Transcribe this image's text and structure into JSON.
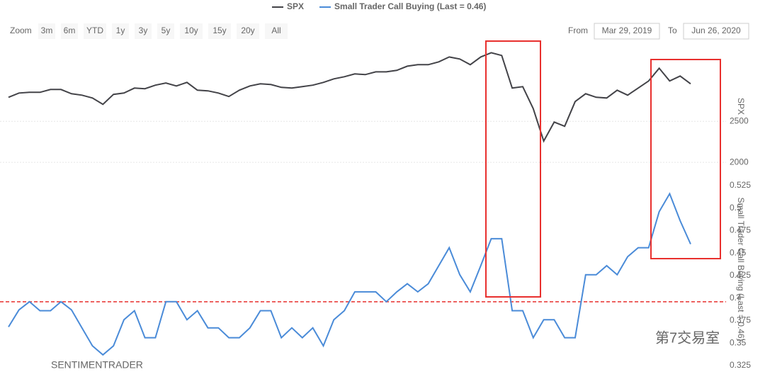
{
  "range_selector": {
    "label": "Zoom",
    "buttons": [
      "3m",
      "6m",
      "YTD",
      "1y",
      "3y",
      "5y",
      "10y",
      "15y",
      "20y",
      "All"
    ]
  },
  "date_range": {
    "from_label": "From",
    "from": "Mar 29, 2019",
    "to_label": "To",
    "to": "Jun 26, 2020"
  },
  "credit": "SENTIMENTRADER",
  "watermark": "第7交易室",
  "chart_data": [
    {
      "type": "line",
      "y_label": "SPX",
      "ylim": [
        1820,
        3460
      ],
      "yticks": [
        2000,
        2500
      ],
      "grid": true,
      "series": [
        {
          "name": "SPX",
          "color": "#434348",
          "values": [
            2793,
            2845,
            2853,
            2853,
            2888,
            2888,
            2836,
            2819,
            2784,
            2707,
            2828,
            2845,
            2905,
            2897,
            2940,
            2966,
            2931,
            2974,
            2879,
            2871,
            2845,
            2802,
            2879,
            2931,
            2957,
            2948,
            2914,
            2905,
            2922,
            2940,
            2974,
            3017,
            3043,
            3078,
            3069,
            3103,
            3103,
            3121,
            3172,
            3190,
            3190,
            3224,
            3284,
            3259,
            3190,
            3284,
            3336,
            3302,
            2905,
            2922,
            2655,
            2259,
            2491,
            2440,
            2741,
            2836,
            2793,
            2784,
            2879,
            2819,
            2905,
            2991,
            3147,
            2991,
            3052,
            2957
          ]
        }
      ]
    },
    {
      "type": "line",
      "y_label": "Small Trader Call Buying (Last = 0.46)",
      "ylim": [
        0.325,
        0.525
      ],
      "yticks": [
        0.325,
        0.35,
        0.375,
        0.4,
        0.425,
        0.45,
        0.475,
        0.5,
        0.525
      ],
      "grid": false,
      "reference_line": {
        "value": 0.396,
        "color": "#e8302e"
      },
      "series": [
        {
          "name": "Small Trader Call Buying (Last = 0.46)",
          "color": "#4a8bd8",
          "values": [
            0.368,
            0.387,
            0.396,
            0.386,
            0.386,
            0.396,
            0.387,
            0.367,
            0.347,
            0.337,
            0.347,
            0.376,
            0.386,
            0.356,
            0.356,
            0.396,
            0.396,
            0.376,
            0.386,
            0.367,
            0.367,
            0.356,
            0.356,
            0.367,
            0.386,
            0.386,
            0.356,
            0.367,
            0.356,
            0.367,
            0.347,
            0.376,
            0.386,
            0.407,
            0.407,
            0.407,
            0.396,
            0.407,
            0.416,
            0.407,
            0.416,
            0.436,
            0.456,
            0.426,
            0.407,
            0.436,
            0.466,
            0.466,
            0.386,
            0.386,
            0.356,
            0.376,
            0.376,
            0.356,
            0.356,
            0.426,
            0.426,
            0.436,
            0.426,
            0.446,
            0.456,
            0.456,
            0.496,
            0.516,
            0.486,
            0.46
          ]
        }
      ]
    }
  ]
}
